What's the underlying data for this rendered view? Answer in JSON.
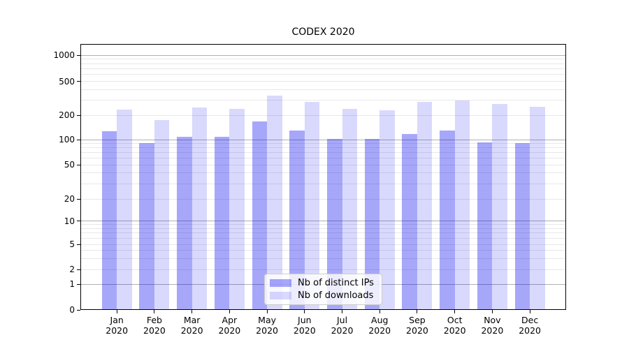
{
  "chart_data": {
    "type": "bar",
    "title": "CODEX 2020",
    "categories": [
      "Jan 2020",
      "Feb 2020",
      "Mar 2020",
      "Apr 2020",
      "May 2020",
      "Jun 2020",
      "Jul 2020",
      "Aug 2020",
      "Sep 2020",
      "Oct 2020",
      "Nov 2020",
      "Dec 2020"
    ],
    "series": [
      {
        "name": "Nb of distinct IPs",
        "color": "rgba(2,2,240,0.35)",
        "color_hex": "#a7a7fa",
        "values": [
          128,
          91,
          109,
          109,
          166,
          130,
          103,
          103,
          118,
          130,
          92,
          90
        ]
      },
      {
        "name": "Nb of downloads",
        "color": "rgba(2,2,240,0.15)",
        "color_hex": "#d9d9fc",
        "values": [
          234,
          175,
          245,
          237,
          342,
          287,
          237,
          230,
          287,
          296,
          269,
          250
        ]
      }
    ],
    "xlabel": "",
    "ylabel": "",
    "yscale": "symlog",
    "y_ticks": [
      0,
      1,
      2,
      5,
      10,
      20,
      50,
      100,
      200,
      500,
      1000
    ],
    "ylim": [
      0,
      1300
    ],
    "grid": true,
    "legend_position": "lower center"
  },
  "colors": {
    "background": "#ffffff",
    "axis": "#000000",
    "major_grid": "#b0b0b0",
    "minor_grid": "#e8e8e8",
    "legend_border": "#cccccc"
  }
}
